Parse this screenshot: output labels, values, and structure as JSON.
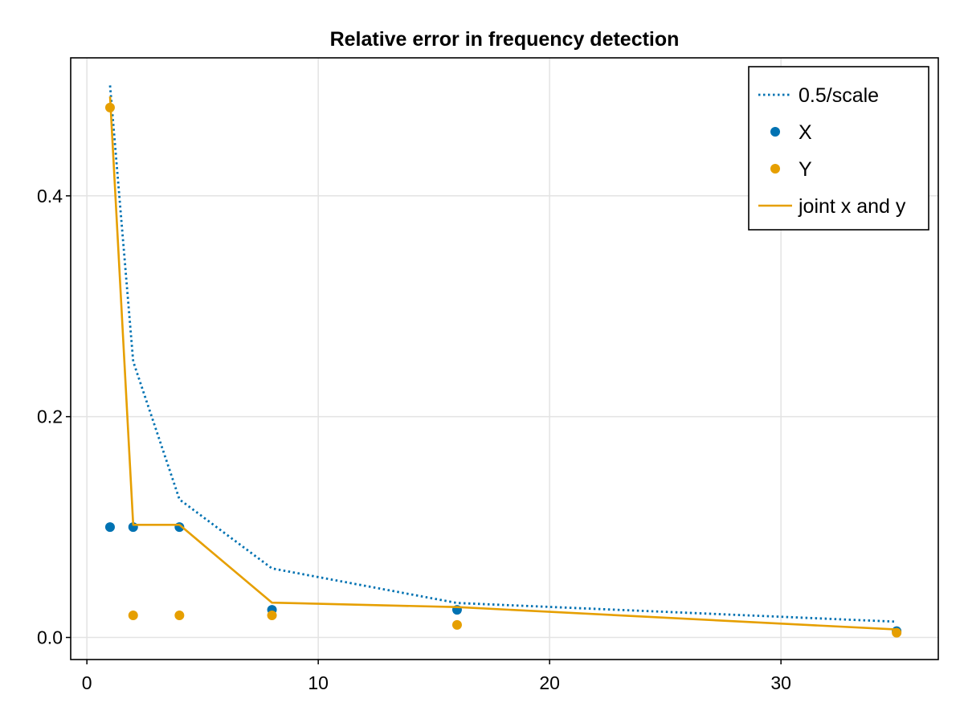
{
  "chart_data": {
    "type": "line",
    "title": "Relative error in frequency detection",
    "xlabel": "",
    "ylabel": "",
    "xlim": [
      -0.7,
      36.8
    ],
    "ylim": [
      -0.02,
      0.525
    ],
    "xticks": [
      0,
      10,
      20,
      30
    ],
    "xtick_labels": [
      "0",
      "10",
      "20",
      "30"
    ],
    "yticks": [
      0.0,
      0.2,
      0.4
    ],
    "ytick_labels": [
      "0.0",
      "0.2",
      "0.4"
    ],
    "grid": true,
    "legend_position": "top-right",
    "series": [
      {
        "name": "0.5/scale",
        "kind": "line",
        "style": "dotted",
        "color": "#0072b2",
        "x": [
          1,
          2,
          4,
          8,
          16,
          35
        ],
        "y": [
          0.5,
          0.25,
          0.125,
          0.0625,
          0.03125,
          0.0143
        ]
      },
      {
        "name": "X",
        "kind": "scatter",
        "color": "#0072b2",
        "x": [
          1,
          2,
          4,
          8,
          16,
          35
        ],
        "y": [
          0.1,
          0.1,
          0.1,
          0.025,
          0.025,
          0.0057
        ]
      },
      {
        "name": "Y",
        "kind": "scatter",
        "color": "#e69f00",
        "x": [
          1,
          2,
          4,
          8,
          16,
          35
        ],
        "y": [
          0.48,
          0.02,
          0.02,
          0.02,
          0.0114,
          0.0043
        ]
      },
      {
        "name": "joint x and y",
        "kind": "line",
        "style": "solid",
        "color": "#e69f00",
        "x": [
          1,
          2,
          4,
          8,
          16,
          35
        ],
        "y": [
          0.49,
          0.102,
          0.102,
          0.0315,
          0.0275,
          0.0072
        ]
      }
    ]
  }
}
